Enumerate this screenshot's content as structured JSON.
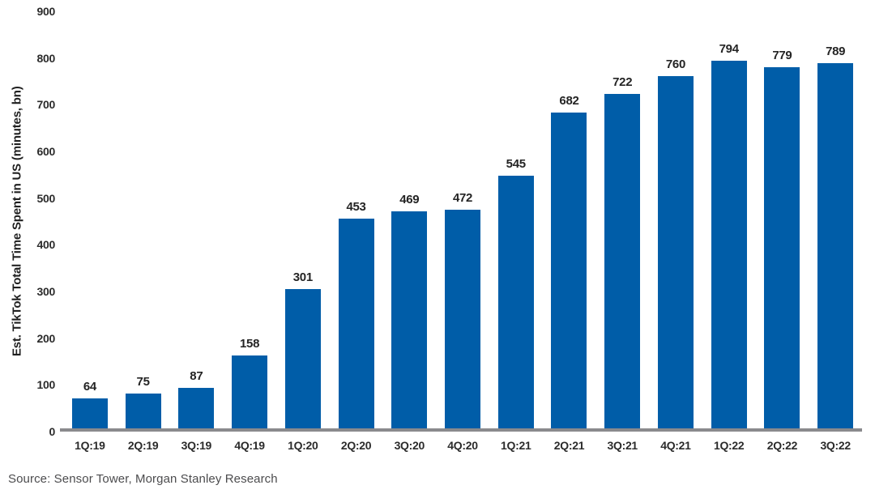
{
  "chart_data": {
    "type": "bar",
    "title": "",
    "xlabel": "",
    "ylabel": "Est. TikTok Total Time Spent in US (minutes, bn)",
    "categories": [
      "1Q:19",
      "2Q:19",
      "3Q:19",
      "4Q:19",
      "1Q:20",
      "2Q:20",
      "3Q:20",
      "4Q:20",
      "1Q:21",
      "2Q:21",
      "3Q:21",
      "4Q:21",
      "1Q:22",
      "2Q:22",
      "3Q:22"
    ],
    "values": [
      64,
      75,
      87,
      158,
      301,
      453,
      469,
      472,
      545,
      682,
      722,
      760,
      794,
      779,
      789
    ],
    "ylim": [
      0,
      900
    ],
    "yticks": [
      0,
      100,
      200,
      300,
      400,
      500,
      600,
      700,
      800,
      900
    ],
    "grid": false,
    "legend": false,
    "data_labels": true,
    "bar_color": "#005da8",
    "axis_line_color": "#8a8a8d",
    "label_color": "#242424"
  },
  "source": {
    "text": "Source: Sensor Tower, Morgan Stanley Research"
  }
}
